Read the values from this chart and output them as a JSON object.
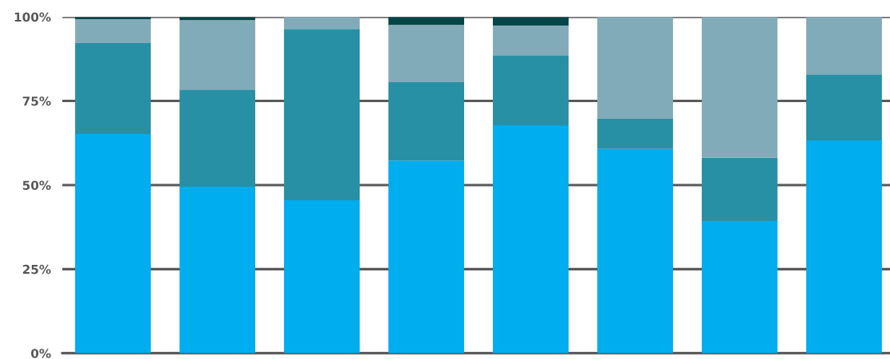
{
  "chart_data": {
    "type": "bar",
    "stacked": true,
    "categories": [
      null,
      null,
      null,
      null,
      null,
      null,
      null,
      null
    ],
    "series": [
      {
        "color": "#00adee",
        "values": [
          65.2,
          49.5,
          45.5,
          57.3,
          67.8,
          60.7,
          39.3,
          63.3
        ]
      },
      {
        "color": "#2890a4",
        "values": [
          27.0,
          28.9,
          50.9,
          23.3,
          20.8,
          9.0,
          18.8,
          19.6
        ]
      },
      {
        "color": "#82abb9",
        "values": [
          7.1,
          20.6,
          3.6,
          17.0,
          8.8,
          30.3,
          41.9,
          17.1
        ]
      },
      {
        "color": "#044548",
        "values": [
          0.7,
          1.0,
          0,
          2.4,
          2.6,
          0,
          0,
          0
        ]
      }
    ],
    "ylim": [
      0,
      100
    ],
    "yticks": [
      {
        "value": 0,
        "label": "0%"
      },
      {
        "value": 25,
        "label": "25%"
      },
      {
        "value": 50,
        "label": "50%"
      },
      {
        "value": 75,
        "label": "75%"
      },
      {
        "value": 100,
        "label": "100%"
      }
    ],
    "grid": "y"
  }
}
